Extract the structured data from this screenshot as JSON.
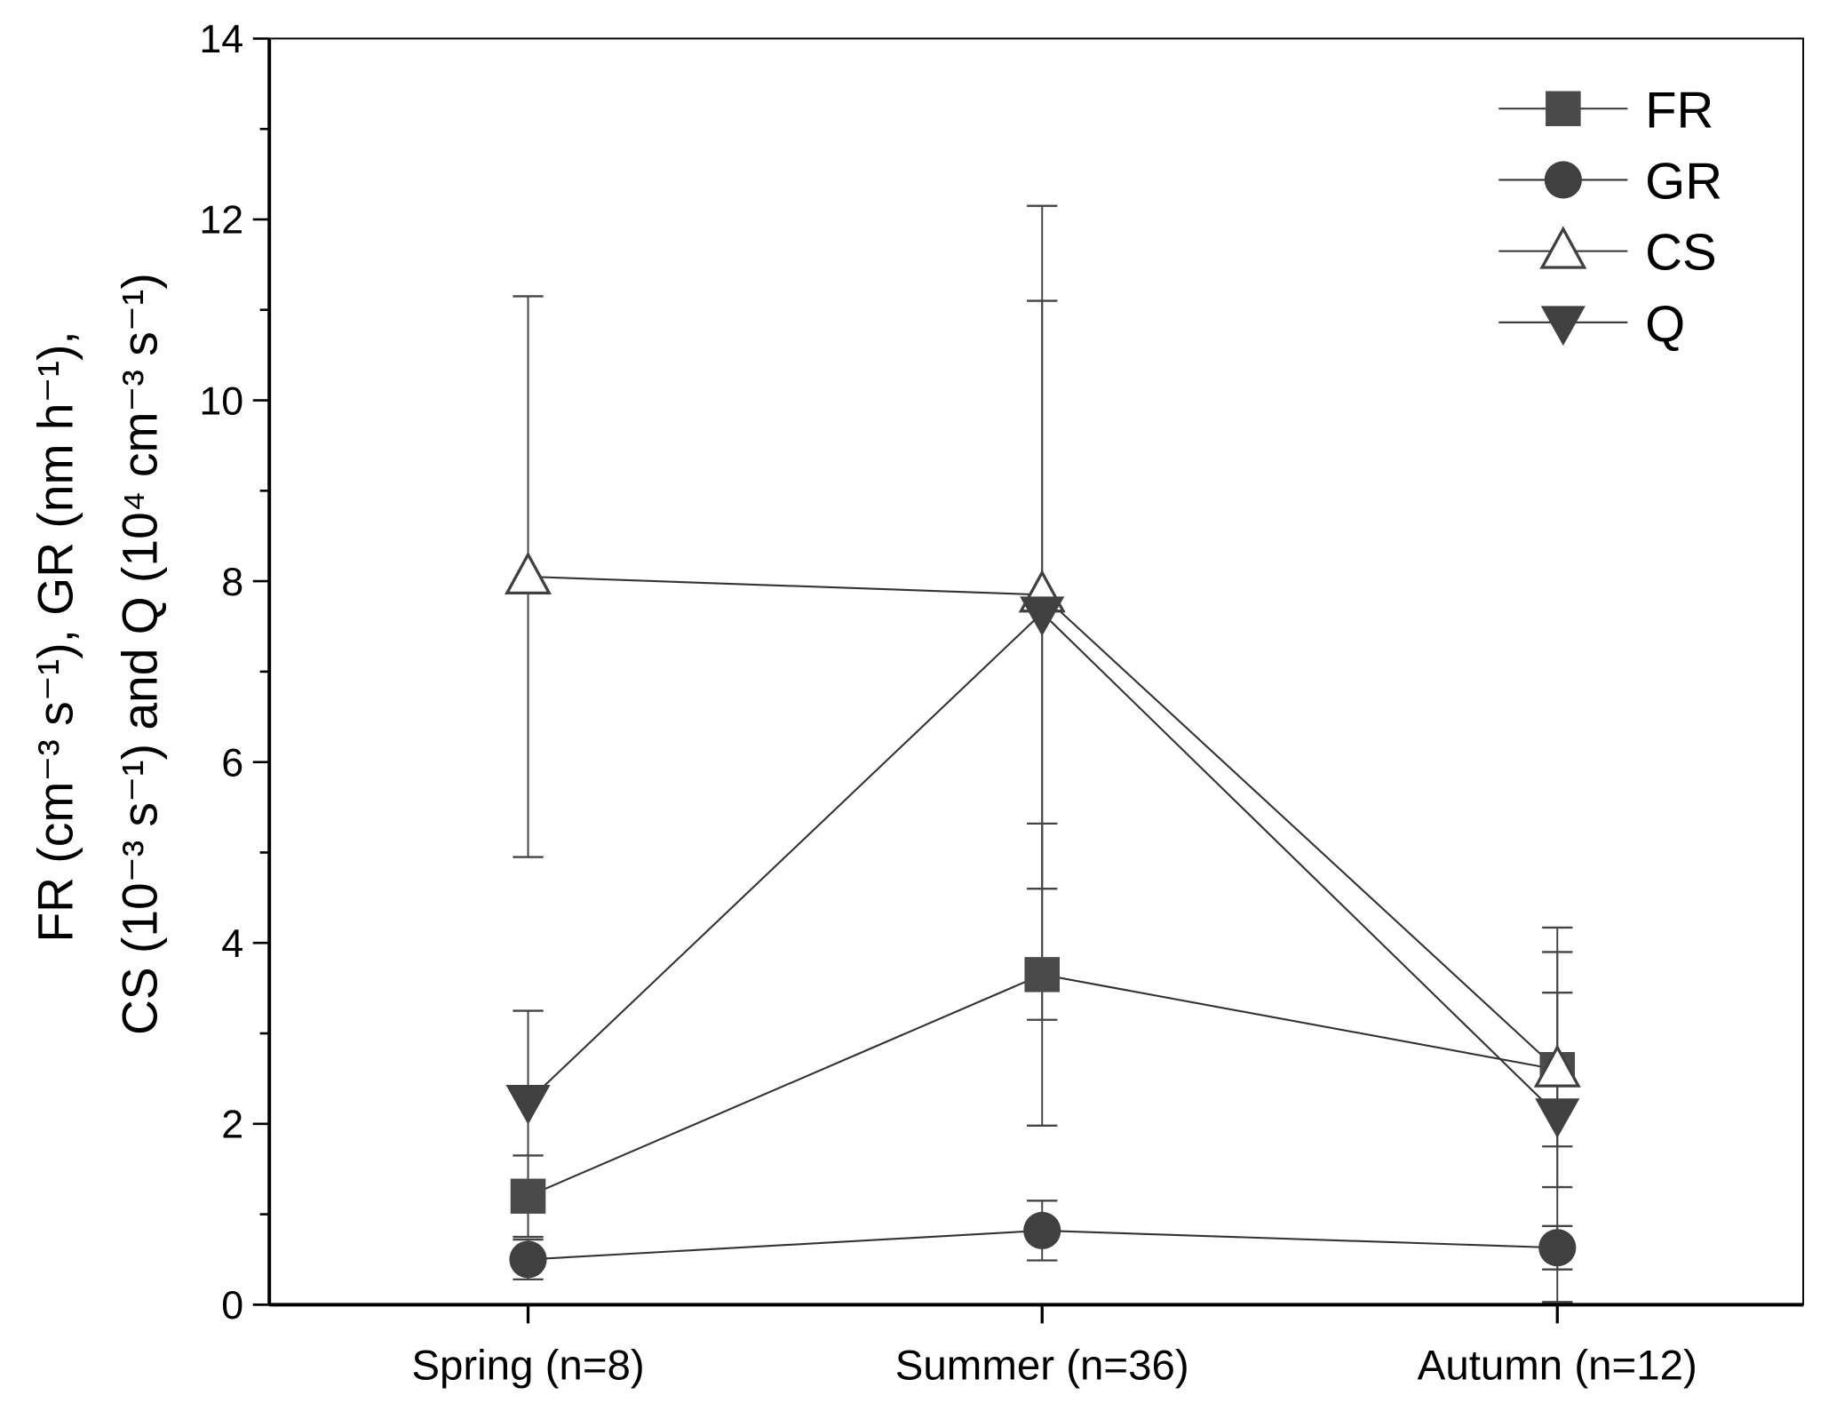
{
  "chart_data": {
    "type": "line",
    "title": "",
    "xlabel": "",
    "ylabel_lines": [
      "FR (cm⁻³ s⁻¹), GR (nm h⁻¹),",
      "CS (10⁻³ s⁻¹) and Q (10⁴ cm⁻³ s⁻¹)"
    ],
    "categories": [
      "Spring (n=8)",
      "Summer (n=36)",
      "Autumn (n=12)"
    ],
    "ylim": [
      0,
      14
    ],
    "yticks": [
      0,
      2,
      4,
      6,
      8,
      10,
      12,
      14
    ],
    "yticks_minor_step": 1,
    "grid": false,
    "legend_position": "top-right",
    "series": [
      {
        "name": "FR",
        "marker": "square",
        "color": "#444444",
        "values": [
          1.2,
          3.65,
          2.6
        ],
        "errors": [
          0.45,
          1.67,
          0.85
        ]
      },
      {
        "name": "GR",
        "marker": "circle",
        "color": "#404040",
        "values": [
          0.5,
          0.82,
          0.63
        ],
        "errors": [
          0.22,
          0.33,
          0.24
        ]
      },
      {
        "name": "CS",
        "marker": "triangle-up-open",
        "color": "#404040",
        "values": [
          8.05,
          7.85,
          2.6
        ],
        "errors": [
          3.1,
          3.25,
          1.3
        ]
      },
      {
        "name": "Q",
        "marker": "triangle-down",
        "color": "#404040",
        "values": [
          2.25,
          7.65,
          2.1
        ],
        "errors": [
          1.0,
          4.5,
          2.07
        ]
      }
    ]
  }
}
